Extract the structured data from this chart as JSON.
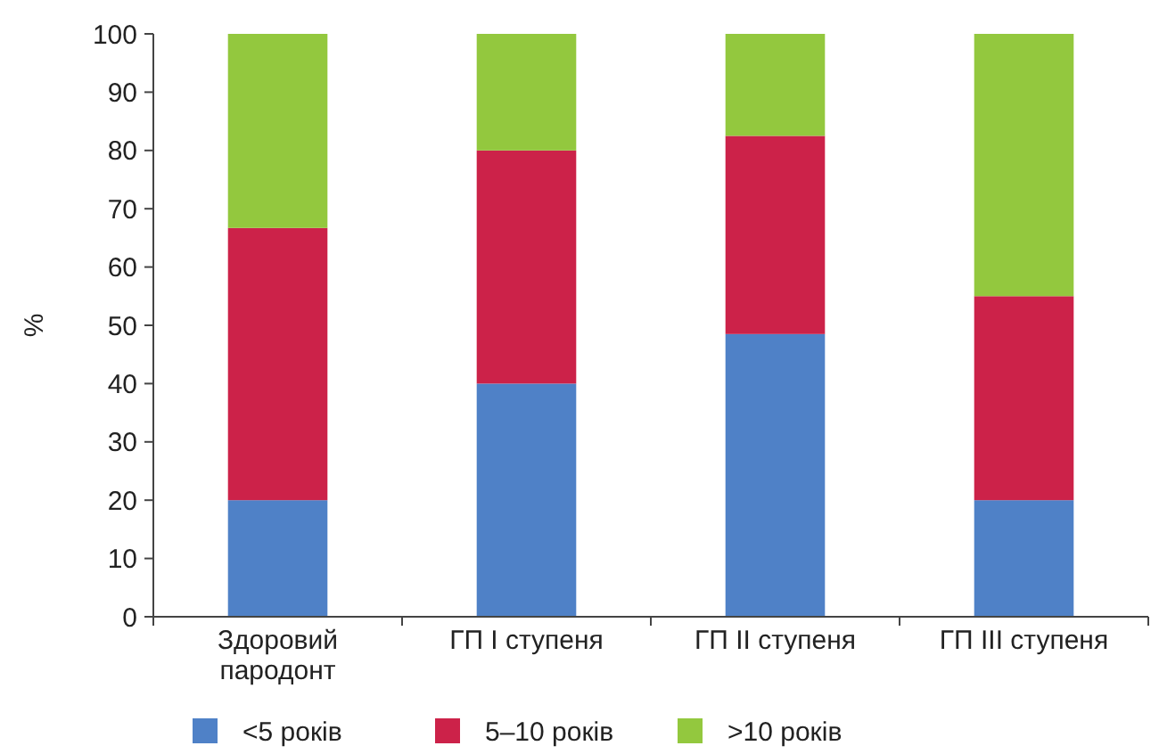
{
  "chart_data": {
    "type": "bar",
    "stacked": true,
    "ylabel": "%",
    "categories": [
      "Здоровий пародонт",
      "ГП I ступеня",
      "ГП II ступеня",
      "ГП III ступеня"
    ],
    "series": [
      {
        "name": "<5 років",
        "color": "#4f81c7",
        "values": [
          20,
          40,
          48.5,
          20
        ]
      },
      {
        "name": "5–10 років",
        "color": "#cc2249",
        "values": [
          46.7,
          40,
          34,
          35
        ]
      },
      {
        "name": ">10 років",
        "color": "#93c83e",
        "values": [
          33.3,
          20,
          17.5,
          45
        ]
      }
    ],
    "ylim": [
      0,
      100
    ],
    "yticks": [
      0,
      10,
      20,
      30,
      40,
      50,
      60,
      70,
      80,
      90,
      100
    ],
    "grid": false,
    "legend": "bottom"
  }
}
